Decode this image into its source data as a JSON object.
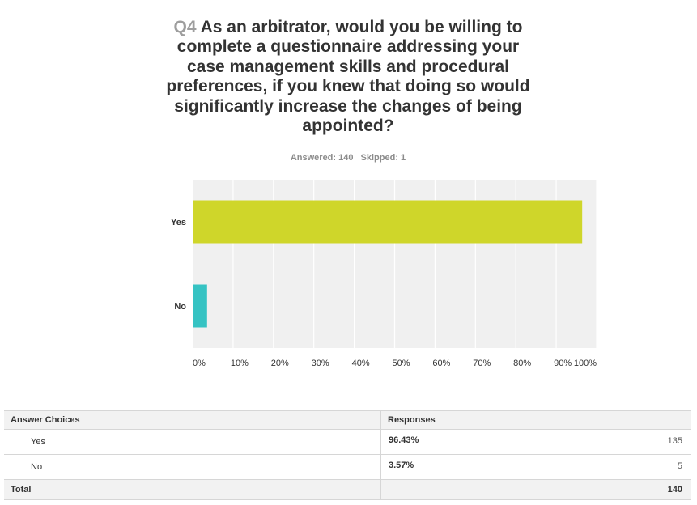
{
  "question": {
    "number": "Q4",
    "text": "As an arbitrator, would you be willing to complete a questionnaire addressing your case management skills and procedural preferences, if you knew that doing so would significantly increase the changes of being appointed?"
  },
  "summary": {
    "answered": "Answered: 140",
    "skipped": "Skipped: 1"
  },
  "chart_data": {
    "type": "bar",
    "orientation": "horizontal",
    "title": "",
    "categories": [
      "Yes",
      "No"
    ],
    "values": [
      96.43,
      3.57
    ],
    "colors": [
      "#cfd62a",
      "#36c3c3"
    ],
    "xlim": [
      0,
      100
    ],
    "xticks": [
      "0%",
      "10%",
      "20%",
      "30%",
      "40%",
      "50%",
      "60%",
      "70%",
      "80%",
      "90%",
      "100%"
    ],
    "grid": true,
    "legend": "none"
  },
  "table": {
    "headers": [
      "Answer Choices",
      "Responses"
    ],
    "rows": [
      {
        "choice": "Yes",
        "percent": "96.43%",
        "count": "135"
      },
      {
        "choice": "No",
        "percent": "3.57%",
        "count": "5"
      }
    ],
    "total_label": "Total",
    "total_count": "140"
  }
}
